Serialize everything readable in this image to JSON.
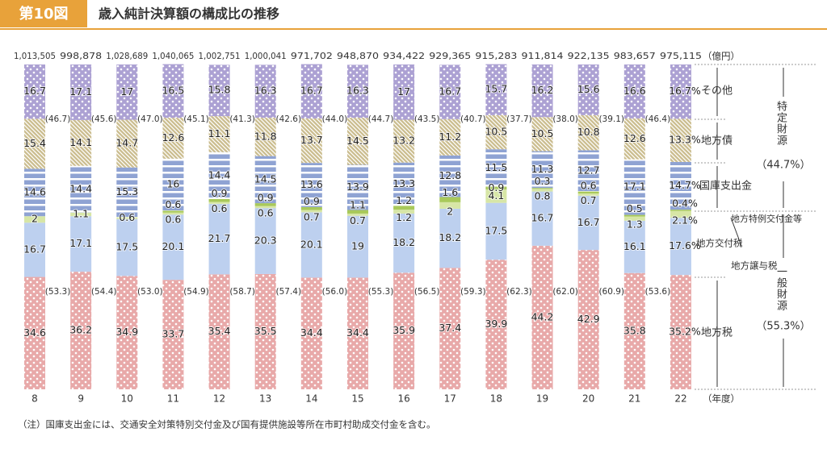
{
  "header": {
    "badge": "第10図",
    "title": "歳入純計決算額の構成比の推移"
  },
  "note": "（注）国庫支出金には、交通安全対策特別交付金及び国有提供施設等所在市町村助成交付金を含む。",
  "chart_data": {
    "type": "bar",
    "stacked": true,
    "categories": [
      "8",
      "9",
      "10",
      "11",
      "12",
      "13",
      "14",
      "15",
      "16",
      "17",
      "18",
      "19",
      "20",
      "21",
      "22"
    ],
    "x_unit": "（年度）",
    "totals_unit": "（億円）",
    "totals": {
      "values": [
        1013505,
        998878,
        1028689,
        1040065,
        1002751,
        1000041,
        971702,
        948870,
        934422,
        929365,
        915283,
        911814,
        922135,
        983657,
        975115
      ],
      "value_labels": [
        "1,013,505",
        "998,878",
        "1,028,689",
        "1,040,065",
        "1,002,751",
        "1,000,041",
        "971,702",
        "948,870",
        "934,422",
        "929,365",
        "915,283",
        "911,814",
        "922,135",
        "983,657",
        "975,115"
      ]
    },
    "ylim": [
      0,
      100
    ],
    "series": [
      {
        "name": "地方税",
        "color": "#e8a9a9",
        "pattern": "dots",
        "values": [
          34.6,
          36.2,
          34.9,
          33.7,
          35.4,
          35.5,
          34.4,
          34.4,
          35.9,
          37.4,
          39.9,
          44.2,
          42.9,
          35.8,
          35.2
        ],
        "value_labels": [
          null,
          null,
          null,
          null,
          null,
          null,
          null,
          null,
          null,
          null,
          null,
          null,
          null,
          null,
          "35.2%"
        ]
      },
      {
        "name": "地方交付税",
        "color": "#bdd0ef",
        "pattern": "plain",
        "values": [
          16.7,
          17.1,
          17.5,
          20.1,
          21.7,
          20.3,
          20.1,
          19.0,
          18.2,
          18.2,
          17.5,
          16.7,
          16.7,
          16.1,
          17.6
        ],
        "value_labels": [
          null,
          null,
          null,
          null,
          null,
          null,
          null,
          null,
          null,
          null,
          null,
          null,
          null,
          null,
          "17.6%"
        ]
      },
      {
        "name": "地方譲与税",
        "color": "#d7e6a6",
        "pattern": "plain",
        "values": [
          2.0,
          1.1,
          0.6,
          0.6,
          0.6,
          0.6,
          0.7,
          0.7,
          1.2,
          2.0,
          4.1,
          0.8,
          0.7,
          1.3,
          2.1
        ],
        "value_labels": [
          null,
          null,
          null,
          null,
          null,
          null,
          null,
          null,
          null,
          null,
          null,
          null,
          null,
          null,
          "2.1%"
        ]
      },
      {
        "name": "地方特例交付金等",
        "color": "#a9c95a",
        "pattern": "plain",
        "values": [
          null,
          null,
          null,
          0.6,
          0.9,
          0.9,
          0.9,
          1.1,
          1.2,
          1.6,
          0.9,
          0.3,
          0.6,
          0.5,
          0.4
        ],
        "value_labels": [
          null,
          null,
          null,
          null,
          null,
          null,
          null,
          null,
          null,
          null,
          null,
          null,
          null,
          null,
          "0.4%"
        ]
      },
      {
        "name": "国庫支出金",
        "color": "#8fa3d3",
        "pattern": "stripes",
        "values": [
          14.6,
          14.4,
          15.3,
          16.0,
          14.4,
          14.5,
          13.6,
          13.9,
          13.3,
          12.8,
          11.5,
          11.3,
          12.7,
          17.1,
          14.7
        ],
        "value_labels": [
          null,
          null,
          null,
          null,
          null,
          null,
          null,
          null,
          null,
          null,
          null,
          null,
          null,
          null,
          "14.7%"
        ]
      },
      {
        "name": "地方債",
        "color": "#cbbd8f",
        "pattern": "hatch",
        "values": [
          15.4,
          14.1,
          14.7,
          12.6,
          11.1,
          11.8,
          13.7,
          14.5,
          13.2,
          11.2,
          10.5,
          10.5,
          10.8,
          12.6,
          13.3
        ],
        "value_labels": [
          null,
          null,
          null,
          null,
          null,
          null,
          null,
          null,
          null,
          null,
          null,
          null,
          null,
          null,
          "13.3%"
        ]
      },
      {
        "name": "その他",
        "color": "#aca1d3",
        "pattern": "dots",
        "values": [
          16.7,
          17.1,
          17.0,
          16.5,
          15.8,
          16.3,
          16.7,
          16.3,
          17.0,
          16.7,
          15.7,
          16.2,
          15.6,
          16.6,
          16.7
        ],
        "value_labels": [
          null,
          null,
          null,
          null,
          null,
          null,
          null,
          null,
          null,
          null,
          null,
          null,
          null,
          null,
          "16.7%"
        ]
      }
    ],
    "group_shares": [
      {
        "values": [
          46.7,
          45.6,
          47.0,
          45.1,
          41.3,
          42.6,
          44.0,
          44.7,
          43.5,
          40.7,
          37.7,
          38.0,
          39.1,
          46.4,
          null
        ],
        "value_labels": [
          "(46.7)",
          "(45.6)",
          "(47.0)",
          "(45.1)",
          "(41.3)",
          "(42.6)",
          "(44.0)",
          "(44.7)",
          "(43.5)",
          "(40.7)",
          "(37.7)",
          "(38.0)",
          "(39.1)",
          "(46.4)",
          null
        ]
      },
      {
        "values": [
          53.3,
          54.4,
          53.0,
          54.9,
          58.7,
          57.4,
          56.0,
          55.3,
          56.5,
          59.3,
          62.3,
          62.0,
          60.9,
          53.6,
          null
        ],
        "value_labels": [
          "(53.3)",
          "(54.4)",
          "(53.0)",
          "(54.9)",
          "(58.7)",
          "(57.4)",
          "(56.0)",
          "(55.3)",
          "(56.5)",
          "(59.3)",
          "(62.3)",
          "(62.0)",
          "(60.9)",
          "(53.6)",
          null
        ]
      }
    ],
    "groups": [
      {
        "name": "特定財源",
        "value": 44.7,
        "label": "（44.7%）"
      },
      {
        "name": "一般財源",
        "value": 55.3,
        "label": "（55.3%）"
      }
    ]
  }
}
